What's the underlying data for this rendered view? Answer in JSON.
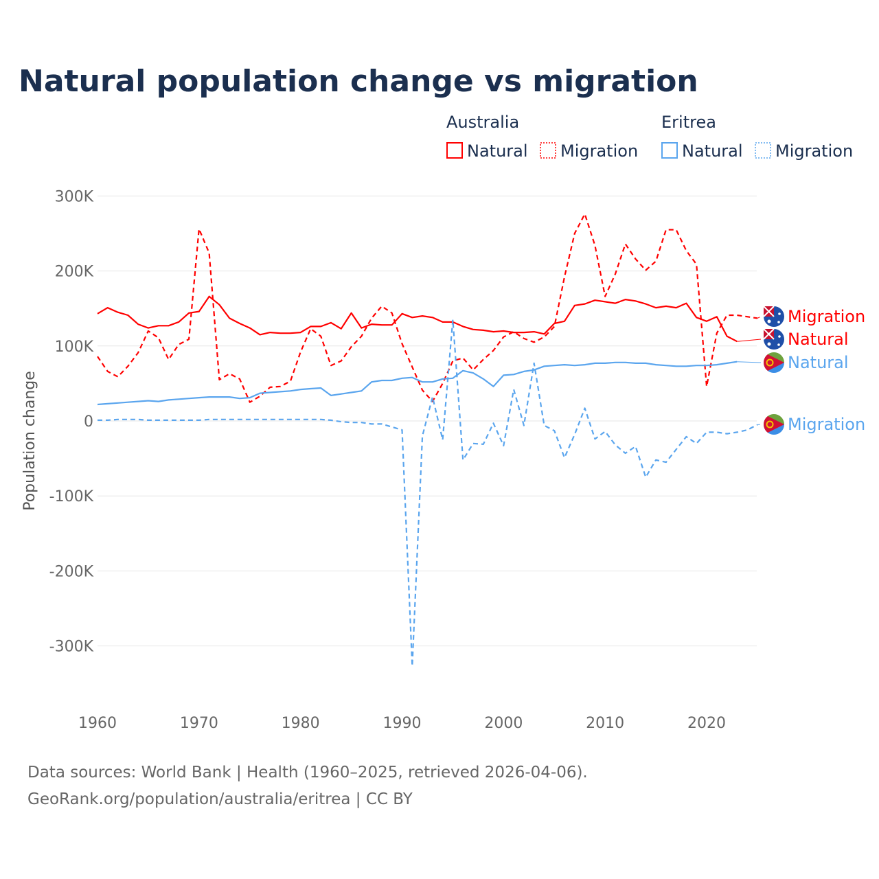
{
  "chart_data": {
    "type": "line",
    "title": "Natural population change vs migration",
    "ylabel": "Population change",
    "xlabel": "",
    "xlim": [
      1960,
      2025
    ],
    "ylim": [
      -350000,
      300000
    ],
    "grid": true,
    "x_ticks": [
      1960,
      1970,
      1980,
      1990,
      2000,
      2010,
      2020
    ],
    "y_ticks": [
      {
        "v": 300,
        "label": "300K"
      },
      {
        "v": 200,
        "label": "200K"
      },
      {
        "v": 100,
        "label": "100K"
      },
      {
        "v": 0,
        "label": "0"
      },
      {
        "v": -100,
        "label": "-100K"
      },
      {
        "v": -200,
        "label": "-200K"
      },
      {
        "v": -300,
        "label": "-300K"
      }
    ],
    "units": "thousands",
    "legend": {
      "placement": "top-right",
      "groups": [
        {
          "country": "Australia",
          "items": [
            "Natural",
            "Migration"
          ]
        },
        {
          "country": "Eritrea",
          "items": [
            "Natural",
            "Migration"
          ]
        }
      ]
    },
    "colors": {
      "Australia": "#ff0000",
      "Eritrea": "#5aa5ee"
    },
    "series": [
      {
        "name": "Australia Natural",
        "label": "Natural",
        "country": "Australia",
        "dash": false,
        "start": 1960,
        "values": [
          143,
          151,
          145,
          141,
          129,
          124,
          127,
          127,
          132,
          144,
          146,
          166,
          155,
          137,
          130,
          124,
          115,
          118,
          117,
          117,
          118,
          126,
          126,
          131,
          123,
          144,
          124,
          129,
          128,
          128,
          143,
          138,
          140,
          138,
          132,
          132,
          126,
          122,
          121,
          119,
          120,
          118,
          118,
          119,
          116,
          130,
          133,
          154,
          156,
          161,
          159,
          157,
          162,
          160,
          156,
          151,
          153,
          151,
          157,
          138,
          133,
          139,
          113,
          106
        ]
      },
      {
        "name": "Australia Migration",
        "label": "Migration",
        "country": "Australia",
        "dash": true,
        "start": 1960,
        "values": [
          86,
          66,
          59,
          73,
          91,
          120,
          111,
          82,
          102,
          109,
          256,
          224,
          55,
          63,
          56,
          25,
          33,
          45,
          46,
          53,
          92,
          123,
          113,
          74,
          80,
          99,
          113,
          137,
          153,
          144,
          103,
          72,
          41,
          26,
          50,
          80,
          84,
          68,
          82,
          94,
          112,
          119,
          110,
          105,
          112,
          126,
          192,
          250,
          276,
          234,
          166,
          196,
          236,
          216,
          201,
          213,
          255,
          255,
          227,
          209,
          46,
          117,
          141,
          141,
          139,
          137
        ]
      },
      {
        "name": "Eritrea Natural",
        "label": "Natural",
        "country": "Eritrea",
        "dash": false,
        "start": 1960,
        "values": [
          22,
          23,
          24,
          25,
          26,
          27,
          26,
          28,
          29,
          30,
          31,
          32,
          32,
          32,
          30,
          31,
          37,
          38,
          39,
          40,
          42,
          43,
          44,
          34,
          36,
          38,
          40,
          52,
          54,
          54,
          57,
          58,
          52,
          52,
          56,
          57,
          67,
          64,
          56,
          46,
          61,
          62,
          66,
          68,
          73,
          74,
          75,
          74,
          75,
          77,
          77,
          78,
          78,
          77,
          77,
          75,
          74,
          73,
          73,
          74,
          74,
          75,
          77,
          79
        ]
      },
      {
        "name": "Eritrea Migration",
        "label": "Migration",
        "country": "Eritrea",
        "dash": true,
        "start": 1960,
        "values": [
          1,
          1,
          2,
          2,
          2,
          1,
          1,
          1,
          1,
          1,
          1,
          2,
          2,
          2,
          2,
          2,
          2,
          2,
          2,
          2,
          2,
          2,
          2,
          1,
          -1,
          -2,
          -2,
          -4,
          -4,
          -8,
          -12,
          -327,
          -20,
          32,
          -25,
          135,
          -52,
          -30,
          -31,
          -3,
          -33,
          42,
          -6,
          77,
          -6,
          -13,
          -49,
          -18,
          17,
          -24,
          -14,
          -32,
          -43,
          -34,
          -75,
          -52,
          -55,
          -38,
          -21,
          -30,
          -15,
          -15,
          -17,
          -15,
          -12,
          -5
        ]
      }
    ]
  },
  "footer": {
    "line1": "Data sources: World Bank | Health (1960–2025, retrieved 2026-04-06).",
    "line2": "GeoRank.org/population/australia/eritrea | CC BY"
  }
}
